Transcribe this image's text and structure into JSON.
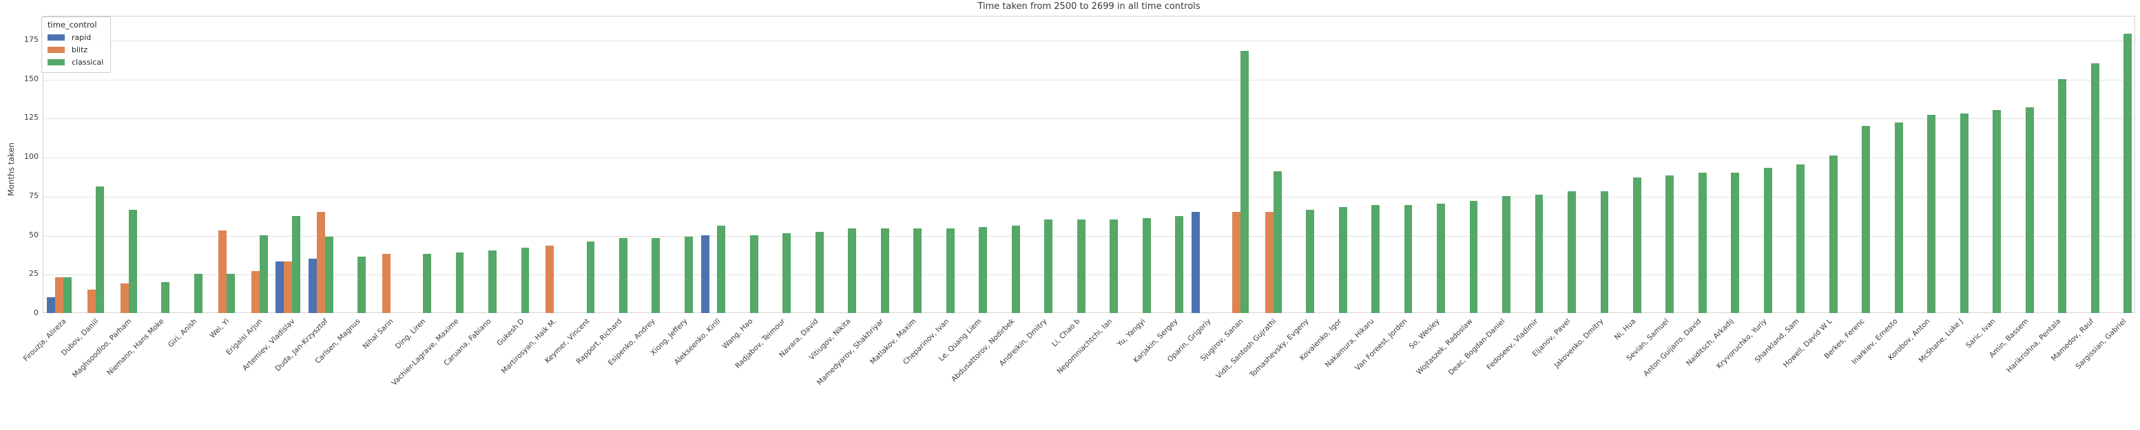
{
  "title": "Time taken from 2500 to 2699 in all time controls",
  "ylabel": "Months taken",
  "legend": {
    "title": "time_control",
    "labels": [
      "rapid",
      "blitz",
      "classical"
    ]
  },
  "chart_data": {
    "type": "bar",
    "title": "Time taken from 2500 to 2699 in all time controls",
    "xlabel": "",
    "ylabel": "Months taken",
    "legend_title": "time_control",
    "legend_position": "upper left",
    "grid": true,
    "ylim": [
      0,
      190
    ],
    "yticks": [
      0,
      25,
      50,
      75,
      100,
      125,
      150,
      175
    ],
    "series_colors": {
      "rapid": "#4c72b0",
      "blitz": "#dd8452",
      "classical": "#55a868"
    },
    "categories": [
      "Firouzja, Alireza",
      "Dubov, Daniil",
      "Maghsoodloo, Parham",
      "Niemann, Hans Moke",
      "Giri, Anish",
      "Wei, Yi",
      "Erigaisi Arjun",
      "Artemiev, Vladislav",
      "Duda, Jan-Krzysztof",
      "Carlsen, Magnus",
      "Nihal Sarin",
      "Ding, Liren",
      "Vachier-Lagrave, Maxime",
      "Caruana, Fabiano",
      "Gukesh D",
      "Martirosyan, Haik M.",
      "Keymer, Vincent",
      "Rapport, Richard",
      "Esipenko, Andrey",
      "Xiong, Jeffery",
      "Alekseenko, Kirill",
      "Wang, Hao",
      "Radjabov, Teimour",
      "Navara, David",
      "Vitiugov, Nikita",
      "Mamedyarov, Shakhriyar",
      "Matlakov, Maxim",
      "Cheparinov, Ivan",
      "Le, Quang Liem",
      "Abdusattorov, Nodirbek",
      "Andreikin, Dmitry",
      "Li, Chao b",
      "Nepomniachtchi, Ian",
      "Yu, Yangyi",
      "Karjakin, Sergey",
      "Oparin, Grigoriy",
      "Sjugirov, Sanan",
      "Vidit, Santosh Gujrathi",
      "Tomashevsky, Evgeny",
      "Kovalenko, Igor",
      "Nakamura, Hikaru",
      "Van Foreest, Jorden",
      "So, Wesley",
      "Wojtaszek, Radoslaw",
      "Deac, Bogdan-Daniel",
      "Fedoseev, Vladimir",
      "Eljanov, Pavel",
      "Jakovenko, Dmitry",
      "Ni, Hua",
      "Sevian, Samuel",
      "Anton Guijarro, David",
      "Naiditsch, Arkadij",
      "Kryvoruchko, Yuriy",
      "Shankland, Sam",
      "Howell, David W L",
      "Berkes, Ferenc",
      "Inarkiev, Ernesto",
      "Korobov, Anton",
      "McShane, Luke J",
      "Saric, Ivan",
      "Amin, Bassem",
      "Harikrishna, Pentala",
      "Mamedov, Rauf",
      "Sargissian, Gabriel"
    ],
    "series": [
      {
        "name": "rapid",
        "color": "#4c72b0",
        "values": [
          10,
          null,
          null,
          null,
          null,
          null,
          null,
          33,
          35,
          null,
          null,
          null,
          null,
          null,
          null,
          null,
          null,
          null,
          null,
          null,
          50,
          null,
          null,
          null,
          null,
          null,
          null,
          null,
          null,
          null,
          null,
          null,
          null,
          null,
          null,
          65,
          null,
          null,
          null,
          null,
          null,
          null,
          null,
          null,
          null,
          null,
          null,
          null,
          null,
          null,
          null,
          null,
          null,
          null,
          null,
          null,
          null,
          null,
          null,
          null,
          null,
          null,
          null,
          null
        ]
      },
      {
        "name": "blitz",
        "color": "#dd8452",
        "values": [
          23,
          15,
          19,
          null,
          null,
          53,
          27,
          33,
          65,
          null,
          38,
          null,
          null,
          null,
          null,
          43,
          null,
          null,
          null,
          null,
          null,
          null,
          null,
          null,
          null,
          null,
          null,
          null,
          null,
          null,
          null,
          null,
          null,
          null,
          null,
          null,
          65,
          65,
          null,
          null,
          null,
          null,
          null,
          null,
          null,
          null,
          null,
          null,
          null,
          null,
          null,
          null,
          null,
          null,
          null,
          null,
          null,
          null,
          null,
          null,
          null,
          null,
          null,
          null
        ]
      },
      {
        "name": "classical",
        "color": "#55a868",
        "values": [
          23,
          81,
          66,
          20,
          25,
          25,
          50,
          62,
          49,
          36,
          null,
          38,
          39,
          40,
          42,
          null,
          46,
          48,
          48,
          49,
          56,
          50,
          51,
          52,
          54,
          54,
          54,
          54,
          55,
          56,
          60,
          60,
          60,
          61,
          62,
          null,
          168,
          91,
          66,
          68,
          69,
          69,
          70,
          72,
          75,
          76,
          78,
          78,
          87,
          88,
          90,
          90,
          93,
          95,
          101,
          120,
          122,
          127,
          128,
          130,
          132,
          150,
          160,
          179
        ]
      }
    ]
  }
}
